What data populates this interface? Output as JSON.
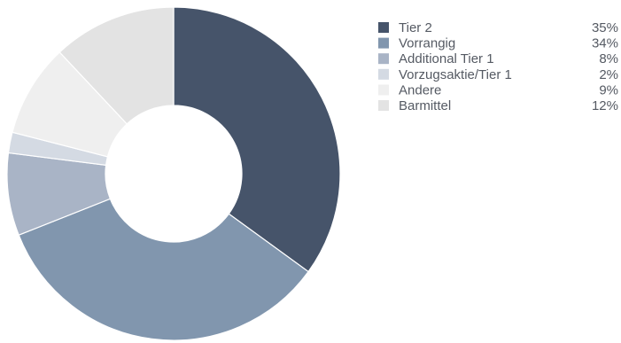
{
  "chart_data": {
    "type": "pie",
    "variant": "donut",
    "legend_position": "right",
    "labels": [
      "Tier 2",
      "Vorrangig",
      "Additional Tier 1",
      "Vorzugsaktie/Tier 1",
      "Andere",
      "Barmittel"
    ],
    "values": [
      35,
      34,
      8,
      2,
      9,
      12
    ],
    "value_labels": [
      "35%",
      "34%",
      "8%",
      "2%",
      "9%",
      "12%"
    ],
    "colors": [
      "#46546a",
      "#8196ae",
      "#a9b4c6",
      "#d4dae3",
      "#efefef",
      "#e3e3e3"
    ]
  }
}
